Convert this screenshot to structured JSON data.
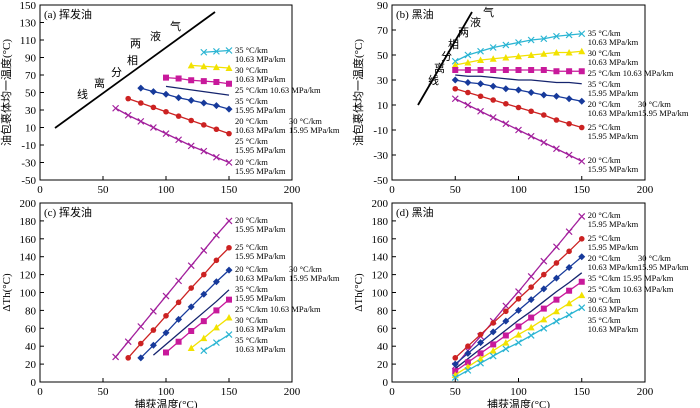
{
  "chart_data": [
    {
      "type": "line",
      "title": "(a) 挥发油",
      "ylabel": "油包裹体均一温度(°C)",
      "xlim": [
        0,
        200
      ],
      "xticks": [
        0,
        50,
        100,
        150,
        200
      ],
      "ylim": [
        -50,
        150
      ],
      "yticks": [
        -50,
        -30,
        -10,
        10,
        30,
        50,
        70,
        90,
        110,
        130,
        150
      ],
      "phase_label": [
        "线",
        "离",
        "分",
        "相",
        "两",
        "液",
        "气"
      ],
      "overlap_note": "30 °C/km\n15.95 MPa/km",
      "series": [
        {
          "name": "35 °C/km\n10.63 MPa/km",
          "color": "#2bb5d3",
          "marker": "x",
          "x": [
            130,
            140,
            150
          ],
          "values": [
            96,
            97,
            98
          ]
        },
        {
          "name": "30 °C/km\n10.63 MPa/km",
          "color": "#f2e200",
          "marker": "triangle",
          "x": [
            120,
            130,
            140,
            150
          ],
          "values": [
            81,
            80,
            79,
            78
          ]
        },
        {
          "name": "25 °C/km 10.63 MPa/km",
          "color": "#c8199b",
          "marker": "square",
          "x": [
            100,
            110,
            120,
            130,
            140,
            150
          ],
          "values": [
            67,
            66,
            64,
            63,
            62,
            60
          ]
        },
        {
          "name": "35 °C/km\n15.95 MPa/km",
          "color": "#15246e",
          "marker": "none",
          "x": [
            100,
            110,
            120,
            130,
            140,
            150
          ],
          "values": [
            57,
            55,
            53,
            51,
            49,
            47
          ]
        },
        {
          "name": "20 °C/km\n10.63 MPa/km",
          "color": "#173a9b",
          "marker": "diamond",
          "x": [
            80,
            90,
            100,
            110,
            120,
            130,
            140,
            150
          ],
          "values": [
            55,
            51,
            48,
            44,
            41,
            38,
            35,
            31
          ]
        },
        {
          "name": "25 °C/km\n15.95 MPa/km",
          "color": "#cc2222",
          "marker": "circle",
          "x": [
            70,
            80,
            90,
            100,
            110,
            120,
            130,
            140,
            150
          ],
          "values": [
            43,
            38,
            33,
            28,
            23,
            18,
            13,
            8,
            3
          ]
        },
        {
          "name": "20 °C/km\n15.95 MPa/km",
          "color": "#a21f9c",
          "marker": "x",
          "x": [
            60,
            70,
            80,
            90,
            100,
            110,
            120,
            130,
            140,
            150
          ],
          "values": [
            32,
            24,
            17,
            10,
            3,
            -4,
            -11,
            -17,
            -24,
            -30
          ]
        }
      ]
    },
    {
      "type": "line",
      "title": "(b) 黑油",
      "ylabel": "油包裹体均一温度(°C)",
      "xlim": [
        0,
        200
      ],
      "xticks": [
        0,
        50,
        100,
        150,
        200
      ],
      "ylim": [
        -50,
        90
      ],
      "yticks": [
        -50,
        -30,
        -10,
        10,
        30,
        50,
        70,
        90
      ],
      "phase_label": [
        "线",
        "离",
        "分",
        "相",
        "两",
        "液",
        "气"
      ],
      "overlap_note": "30 °C/km\n15.95 MPa/km",
      "series": [
        {
          "name": "35 °C/km\n10.63 MPa/km",
          "color": "#2bb5d3",
          "marker": "x",
          "x": [
            50,
            60,
            70,
            80,
            90,
            100,
            110,
            120,
            130,
            140,
            150
          ],
          "values": [
            45,
            50,
            53,
            56,
            58,
            60,
            62,
            63,
            65,
            66,
            67
          ]
        },
        {
          "name": "30 °C/km\n10.63 MPa/km",
          "color": "#f2e200",
          "marker": "triangle",
          "x": [
            50,
            60,
            70,
            80,
            90,
            100,
            110,
            120,
            130,
            140,
            150
          ],
          "values": [
            42,
            44,
            46,
            47,
            48,
            49,
            50,
            51,
            52,
            52,
            53
          ]
        },
        {
          "name": "25 °C/km 10.63 MPa/km",
          "color": "#c8199b",
          "marker": "square",
          "x": [
            50,
            60,
            70,
            80,
            90,
            100,
            110,
            120,
            130,
            140,
            150
          ],
          "values": [
            38,
            38,
            38,
            38,
            38,
            38,
            38,
            38,
            37,
            37,
            37
          ]
        },
        {
          "name": "35 °C/km\n15.95 MPa/km",
          "color": "#15246e",
          "marker": "none",
          "x": [
            50,
            60,
            70,
            80,
            90,
            100,
            110,
            120,
            130,
            140,
            150
          ],
          "values": [
            34,
            33,
            33,
            32,
            31,
            30,
            30,
            29,
            28,
            28,
            27
          ]
        },
        {
          "name": "20 °C/km\n10.63 MPa/km",
          "color": "#173a9b",
          "marker": "diamond",
          "x": [
            50,
            60,
            70,
            80,
            90,
            100,
            110,
            120,
            130,
            140,
            150
          ],
          "values": [
            30,
            28,
            27,
            25,
            23,
            22,
            20,
            18,
            17,
            15,
            13
          ]
        },
        {
          "name": "25 °C/km\n15.95 MPa/km",
          "color": "#cc2222",
          "marker": "circle",
          "x": [
            50,
            60,
            70,
            80,
            90,
            100,
            110,
            120,
            130,
            140,
            150
          ],
          "values": [
            23,
            20,
            17,
            14,
            11,
            8,
            5,
            2,
            -2,
            -5,
            -8
          ]
        },
        {
          "name": "20 °C/km\n15.95 MPa/km",
          "color": "#a21f9c",
          "marker": "x",
          "x": [
            50,
            60,
            70,
            80,
            90,
            100,
            110,
            120,
            130,
            140,
            150
          ],
          "values": [
            15,
            10,
            5,
            0,
            -5,
            -10,
            -15,
            -20,
            -25,
            -30,
            -35
          ]
        }
      ]
    },
    {
      "type": "line",
      "title": "(c) 挥发油",
      "ylabel": "ΔTh(°C)",
      "xlabel": "捕获温度(°C)",
      "xlim": [
        0,
        200
      ],
      "xticks": [
        0,
        50,
        100,
        150,
        200
      ],
      "ylim": [
        0,
        200
      ],
      "yticks": [
        0,
        20,
        40,
        60,
        80,
        100,
        120,
        140,
        160,
        180,
        200
      ],
      "overlap_note": "30 °C/km\n15.95 MPa/km",
      "series": [
        {
          "name": "20 °C/km\n15.95 MPa/km",
          "color": "#a21f9c",
          "marker": "x",
          "x": [
            60,
            70,
            80,
            90,
            100,
            110,
            120,
            130,
            140,
            150
          ],
          "values": [
            28,
            45,
            62,
            79,
            96,
            113,
            130,
            147,
            164,
            180
          ]
        },
        {
          "name": "25 °C/km\n15.95 MPa/km",
          "color": "#cc2222",
          "marker": "circle",
          "x": [
            70,
            80,
            90,
            100,
            110,
            120,
            130,
            140,
            150
          ],
          "values": [
            27,
            43,
            58,
            74,
            89,
            105,
            120,
            136,
            150
          ]
        },
        {
          "name": "20 °C/km\n10.63 MPa/km",
          "color": "#173a9b",
          "marker": "diamond",
          "x": [
            80,
            90,
            100,
            110,
            120,
            130,
            140,
            150
          ],
          "values": [
            27,
            41,
            55,
            70,
            84,
            98,
            112,
            125
          ]
        },
        {
          "name": "35 °C/km\n15.95 MPa/km",
          "color": "#15246e",
          "marker": "none",
          "x": [
            90,
            100,
            110,
            120,
            130,
            140,
            150
          ],
          "values": [
            30,
            42,
            54,
            66,
            78,
            90,
            103
          ]
        },
        {
          "name": "25 °C/km 10.63 MPa/km",
          "color": "#c8199b",
          "marker": "square",
          "x": [
            100,
            110,
            120,
            130,
            140,
            150
          ],
          "values": [
            33,
            45,
            57,
            68,
            80,
            92
          ]
        },
        {
          "name": "30 °C/km\n10.63 MPa/km",
          "color": "#f2e200",
          "marker": "triangle",
          "x": [
            120,
            130,
            140,
            150
          ],
          "values": [
            38,
            49,
            61,
            72
          ]
        },
        {
          "name": "35 °C/km\n10.63 MPa/km",
          "color": "#2bb5d3",
          "marker": "x",
          "x": [
            130,
            140,
            150
          ],
          "values": [
            35,
            44,
            53
          ]
        }
      ]
    },
    {
      "type": "line",
      "title": "(d) 黑油",
      "ylabel": "ΔTh(°C)",
      "xlabel": "捕获温度(°C)",
      "xlim": [
        0,
        200
      ],
      "xticks": [
        0,
        50,
        100,
        150,
        200
      ],
      "ylim": [
        0,
        200
      ],
      "yticks": [
        0,
        20,
        40,
        60,
        80,
        100,
        120,
        140,
        160,
        180,
        200
      ],
      "overlap_note": "30 °C/km\n15.95 MPa/km",
      "series": [
        {
          "name": "20 °C/km\n15.95 MPa/km",
          "color": "#a21f9c",
          "marker": "x",
          "x": [
            50,
            60,
            70,
            80,
            90,
            100,
            110,
            120,
            130,
            140,
            150
          ],
          "values": [
            18,
            35,
            51,
            68,
            85,
            101,
            118,
            135,
            151,
            168,
            185
          ]
        },
        {
          "name": "25 °C/km\n15.95 MPa/km",
          "color": "#cc2222",
          "marker": "circle",
          "x": [
            50,
            60,
            70,
            80,
            90,
            100,
            110,
            120,
            130,
            140,
            150
          ],
          "values": [
            27,
            40,
            53,
            66,
            79,
            93,
            106,
            120,
            133,
            146,
            160
          ]
        },
        {
          "name": "20 °C/km\n10.63 MPa/km",
          "color": "#173a9b",
          "marker": "diamond",
          "x": [
            50,
            60,
            70,
            80,
            90,
            100,
            110,
            120,
            130,
            140,
            150
          ],
          "values": [
            20,
            32,
            44,
            56,
            68,
            80,
            92,
            104,
            116,
            128,
            140
          ]
        },
        {
          "name": "35 °C/km 15.95 MPa/km",
          "color": "#15246e",
          "marker": "none",
          "x": [
            50,
            60,
            70,
            80,
            90,
            100,
            110,
            120,
            130,
            140,
            150
          ],
          "values": [
            15,
            26,
            37,
            47,
            58,
            69,
            79,
            90,
            101,
            111,
            122
          ]
        },
        {
          "name": "25 °C/km 10.63 MPa/km",
          "color": "#c8199b",
          "marker": "square",
          "x": [
            50,
            60,
            70,
            80,
            90,
            100,
            110,
            120,
            130,
            140,
            150
          ],
          "values": [
            12,
            22,
            32,
            42,
            52,
            62,
            72,
            82,
            92,
            102,
            112
          ]
        },
        {
          "name": "30 °C/km\n10.63 MPa/km",
          "color": "#f2e200",
          "marker": "triangle",
          "x": [
            50,
            60,
            70,
            80,
            90,
            100,
            110,
            120,
            130,
            140,
            150
          ],
          "values": [
            8,
            17,
            26,
            35,
            44,
            53,
            61,
            70,
            79,
            88,
            97
          ]
        },
        {
          "name": "35 °C/km\n10.63 MPa/km",
          "color": "#2bb5d3",
          "marker": "x",
          "x": [
            50,
            60,
            70,
            80,
            90,
            100,
            110,
            120,
            130,
            140,
            150
          ],
          "values": [
            5,
            13,
            21,
            29,
            37,
            44,
            52,
            60,
            68,
            75,
            83
          ]
        }
      ]
    }
  ]
}
